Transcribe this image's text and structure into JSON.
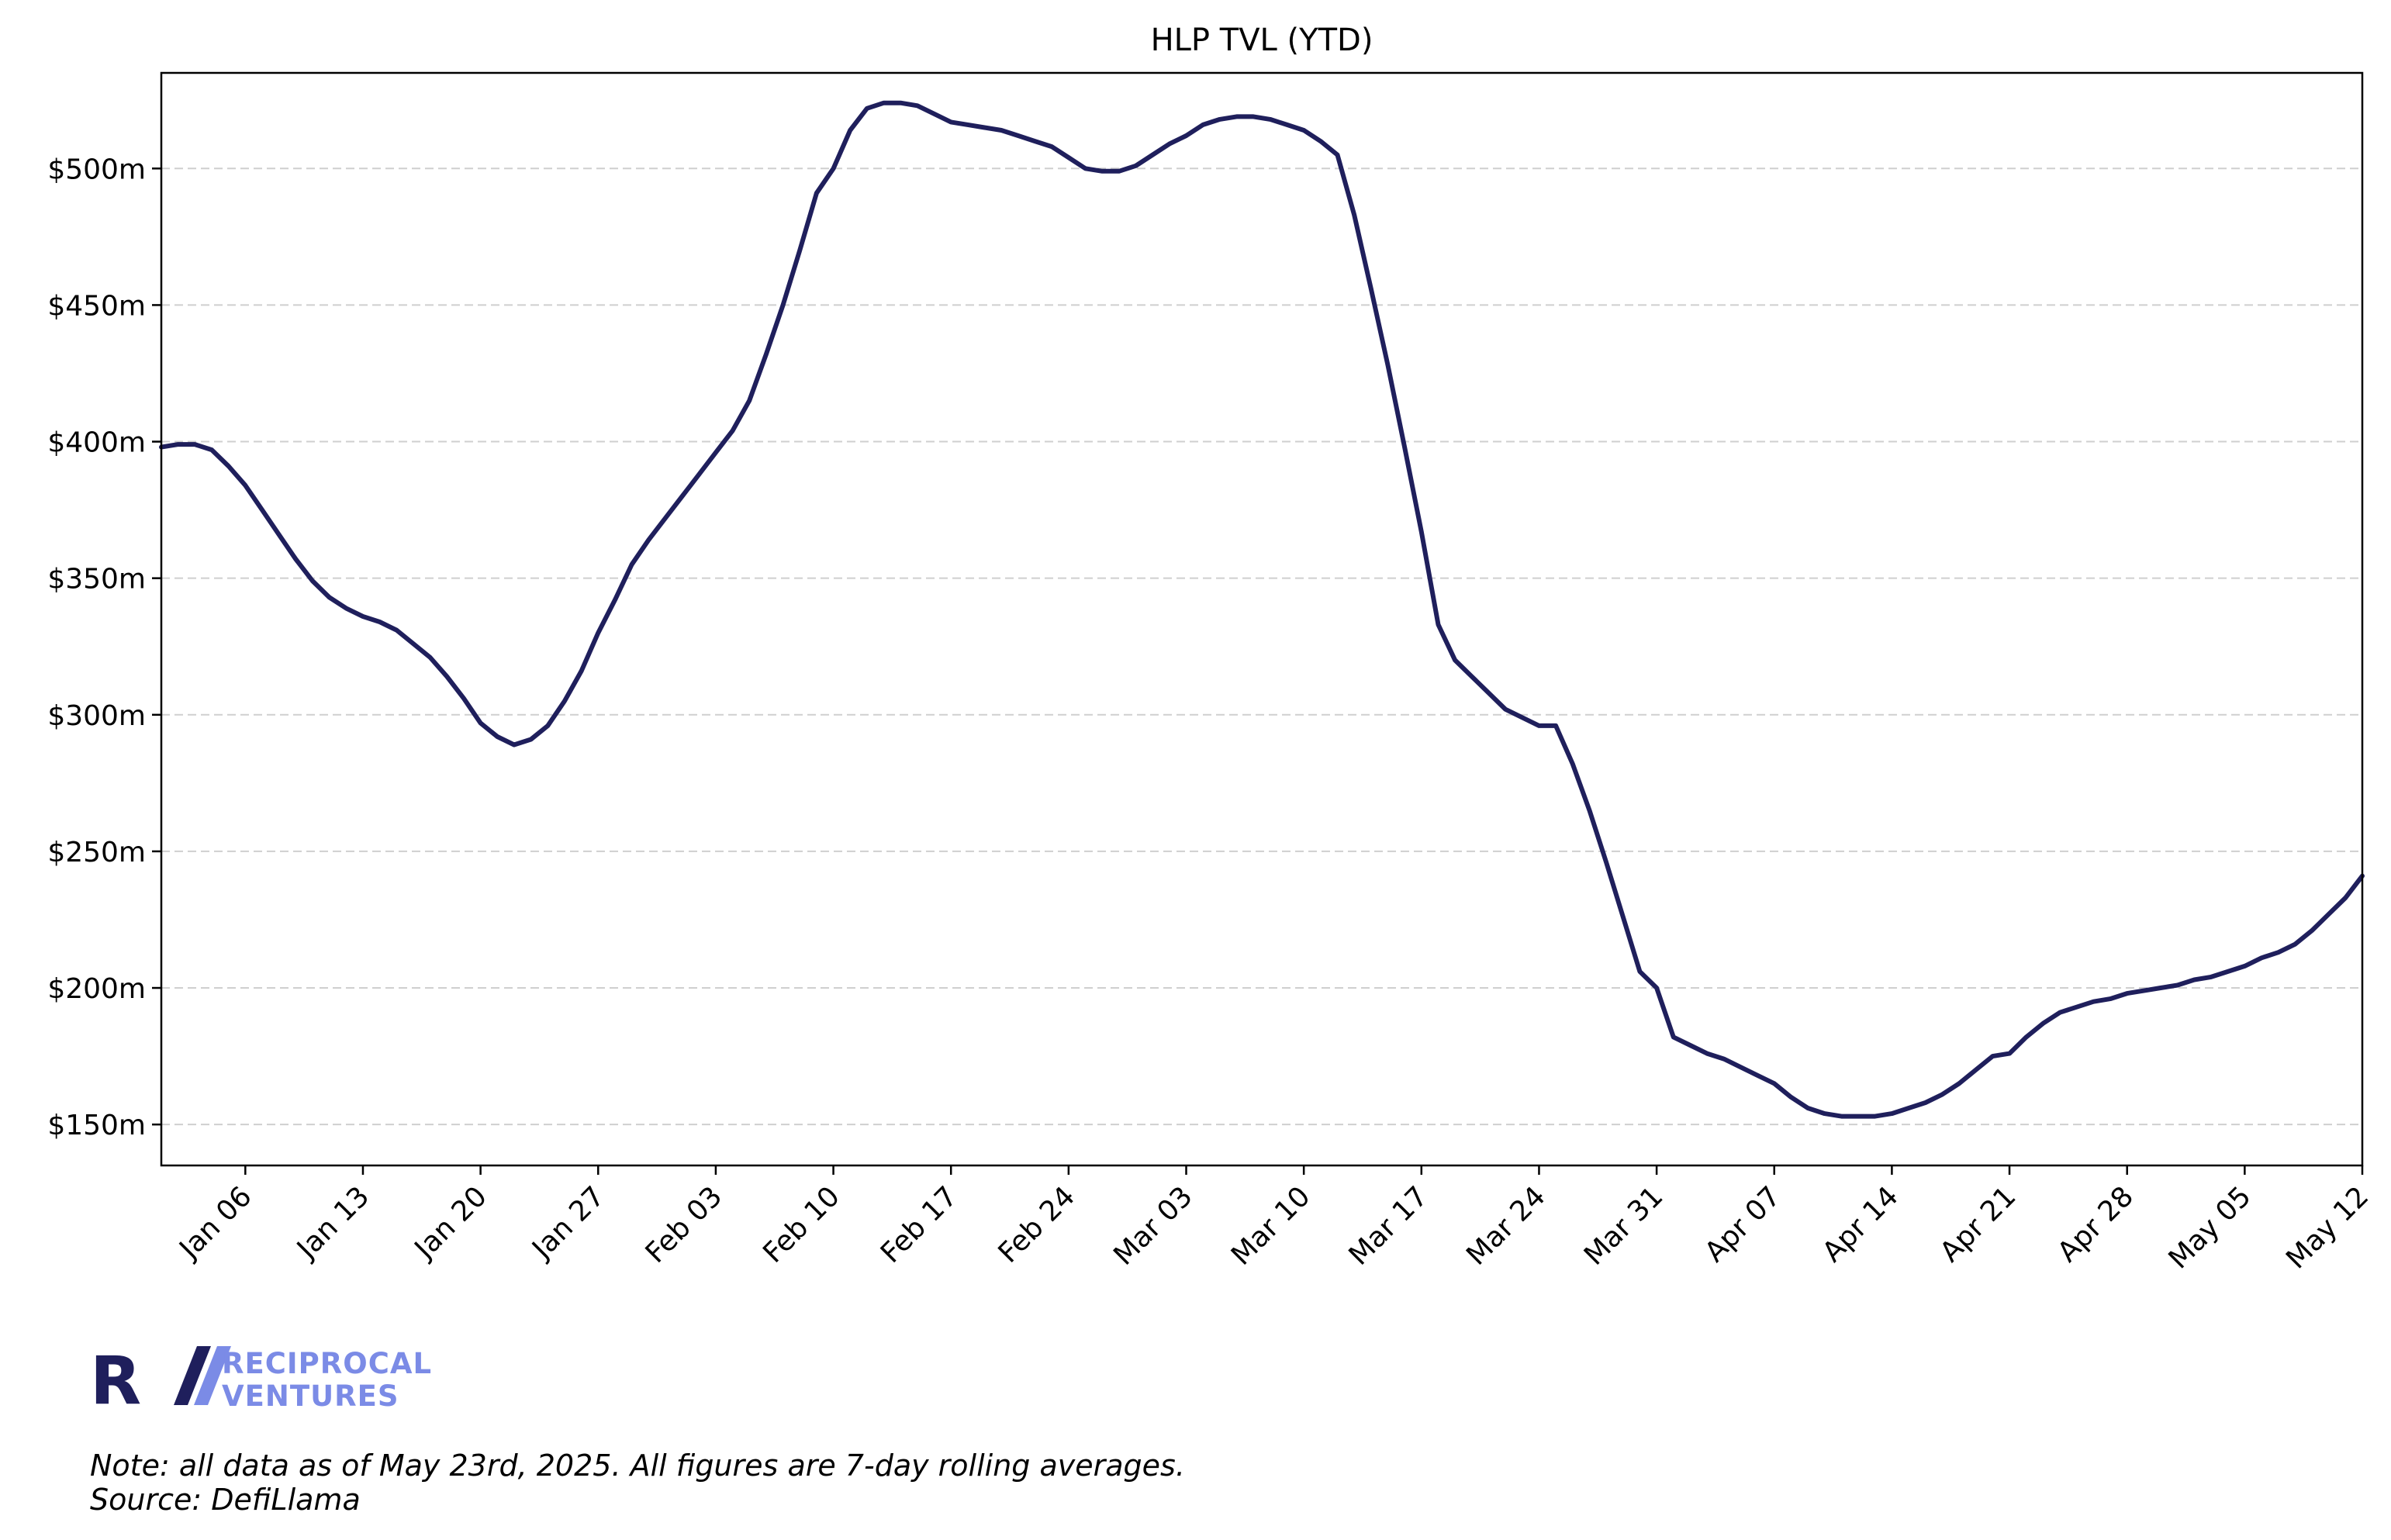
{
  "chart_data": {
    "type": "line",
    "title": "HLP TVL (YTD)",
    "xlabel": "",
    "ylabel": "",
    "grid": "horizontal-dashed",
    "legend": "none",
    "x_range": [
      "2025-01-01",
      "2025-05-12"
    ],
    "ylim": [
      135,
      535
    ],
    "y_ticks": [
      150,
      200,
      250,
      300,
      350,
      400,
      450,
      500
    ],
    "y_tick_labels": [
      "$150m",
      "$200m",
      "$250m",
      "$300m",
      "$350m",
      "$400m",
      "$450m",
      "$500m"
    ],
    "x_ticks": [
      "2025-01-06",
      "2025-01-13",
      "2025-01-20",
      "2025-01-27",
      "2025-02-03",
      "2025-02-10",
      "2025-02-17",
      "2025-02-24",
      "2025-03-03",
      "2025-03-10",
      "2025-03-17",
      "2025-03-24",
      "2025-03-31",
      "2025-04-07",
      "2025-04-14",
      "2025-04-21",
      "2025-04-28",
      "2025-05-05",
      "2025-05-12"
    ],
    "x_tick_labels": [
      "Jan 06",
      "Jan 13",
      "Jan 20",
      "Jan 27",
      "Feb 03",
      "Feb 10",
      "Feb 17",
      "Feb 24",
      "Mar 03",
      "Mar 10",
      "Mar 17",
      "Mar 24",
      "Mar 31",
      "Apr 07",
      "Apr 14",
      "Apr 21",
      "Apr 28",
      "May 05",
      "May 12"
    ],
    "series": [
      {
        "color": "#1f1f5c",
        "points": [
          [
            "2025-01-01",
            398
          ],
          [
            "2025-01-02",
            399
          ],
          [
            "2025-01-03",
            399
          ],
          [
            "2025-01-04",
            397
          ],
          [
            "2025-01-05",
            391
          ],
          [
            "2025-01-06",
            384
          ],
          [
            "2025-01-07",
            375
          ],
          [
            "2025-01-08",
            366
          ],
          [
            "2025-01-09",
            357
          ],
          [
            "2025-01-10",
            349
          ],
          [
            "2025-01-11",
            343
          ],
          [
            "2025-01-12",
            339
          ],
          [
            "2025-01-13",
            336
          ],
          [
            "2025-01-14",
            334
          ],
          [
            "2025-01-15",
            331
          ],
          [
            "2025-01-16",
            326
          ],
          [
            "2025-01-17",
            321
          ],
          [
            "2025-01-18",
            314
          ],
          [
            "2025-01-19",
            306
          ],
          [
            "2025-01-20",
            297
          ],
          [
            "2025-01-21",
            292
          ],
          [
            "2025-01-22",
            289
          ],
          [
            "2025-01-23",
            291
          ],
          [
            "2025-01-24",
            296
          ],
          [
            "2025-01-25",
            305
          ],
          [
            "2025-01-26",
            316
          ],
          [
            "2025-01-27",
            330
          ],
          [
            "2025-01-28",
            342
          ],
          [
            "2025-01-29",
            355
          ],
          [
            "2025-01-30",
            364
          ],
          [
            "2025-01-31",
            372
          ],
          [
            "2025-02-01",
            380
          ],
          [
            "2025-02-02",
            388
          ],
          [
            "2025-02-03",
            396
          ],
          [
            "2025-02-04",
            404
          ],
          [
            "2025-02-05",
            415
          ],
          [
            "2025-02-06",
            432
          ],
          [
            "2025-02-07",
            450
          ],
          [
            "2025-02-08",
            470
          ],
          [
            "2025-02-09",
            491
          ],
          [
            "2025-02-10",
            500
          ],
          [
            "2025-02-11",
            514
          ],
          [
            "2025-02-12",
            522
          ],
          [
            "2025-02-13",
            524
          ],
          [
            "2025-02-14",
            524
          ],
          [
            "2025-02-15",
            523
          ],
          [
            "2025-02-16",
            520
          ],
          [
            "2025-02-17",
            517
          ],
          [
            "2025-02-18",
            516
          ],
          [
            "2025-02-19",
            515
          ],
          [
            "2025-02-20",
            514
          ],
          [
            "2025-02-21",
            512
          ],
          [
            "2025-02-22",
            510
          ],
          [
            "2025-02-23",
            508
          ],
          [
            "2025-02-24",
            504
          ],
          [
            "2025-02-25",
            500
          ],
          [
            "2025-02-26",
            499
          ],
          [
            "2025-02-27",
            499
          ],
          [
            "2025-02-28",
            501
          ],
          [
            "2025-03-01",
            505
          ],
          [
            "2025-03-02",
            509
          ],
          [
            "2025-03-03",
            512
          ],
          [
            "2025-03-04",
            516
          ],
          [
            "2025-03-05",
            518
          ],
          [
            "2025-03-06",
            519
          ],
          [
            "2025-03-07",
            519
          ],
          [
            "2025-03-08",
            518
          ],
          [
            "2025-03-09",
            516
          ],
          [
            "2025-03-10",
            514
          ],
          [
            "2025-03-11",
            510
          ],
          [
            "2025-03-12",
            505
          ],
          [
            "2025-03-13",
            483
          ],
          [
            "2025-03-14",
            456
          ],
          [
            "2025-03-15",
            428
          ],
          [
            "2025-03-16",
            398
          ],
          [
            "2025-03-17",
            367
          ],
          [
            "2025-03-18",
            333
          ],
          [
            "2025-03-19",
            320
          ],
          [
            "2025-03-20",
            314
          ],
          [
            "2025-03-21",
            308
          ],
          [
            "2025-03-22",
            302
          ],
          [
            "2025-03-23",
            299
          ],
          [
            "2025-03-24",
            296
          ],
          [
            "2025-03-25",
            296
          ],
          [
            "2025-03-26",
            282
          ],
          [
            "2025-03-27",
            265
          ],
          [
            "2025-03-28",
            246
          ],
          [
            "2025-03-29",
            226
          ],
          [
            "2025-03-30",
            206
          ],
          [
            "2025-03-31",
            200
          ],
          [
            "2025-04-01",
            182
          ],
          [
            "2025-04-02",
            179
          ],
          [
            "2025-04-03",
            176
          ],
          [
            "2025-04-04",
            174
          ],
          [
            "2025-04-05",
            171
          ],
          [
            "2025-04-06",
            168
          ],
          [
            "2025-04-07",
            165
          ],
          [
            "2025-04-08",
            160
          ],
          [
            "2025-04-09",
            156
          ],
          [
            "2025-04-10",
            154
          ],
          [
            "2025-04-11",
            153
          ],
          [
            "2025-04-12",
            153
          ],
          [
            "2025-04-13",
            153
          ],
          [
            "2025-04-14",
            154
          ],
          [
            "2025-04-15",
            156
          ],
          [
            "2025-04-16",
            158
          ],
          [
            "2025-04-17",
            161
          ],
          [
            "2025-04-18",
            165
          ],
          [
            "2025-04-19",
            170
          ],
          [
            "2025-04-20",
            175
          ],
          [
            "2025-04-21",
            176
          ],
          [
            "2025-04-22",
            182
          ],
          [
            "2025-04-23",
            187
          ],
          [
            "2025-04-24",
            191
          ],
          [
            "2025-04-25",
            193
          ],
          [
            "2025-04-26",
            195
          ],
          [
            "2025-04-27",
            196
          ],
          [
            "2025-04-28",
            198
          ],
          [
            "2025-04-29",
            199
          ],
          [
            "2025-04-30",
            200
          ],
          [
            "2025-05-01",
            201
          ],
          [
            "2025-05-02",
            203
          ],
          [
            "2025-05-03",
            204
          ],
          [
            "2025-05-04",
            206
          ],
          [
            "2025-05-05",
            208
          ],
          [
            "2025-05-06",
            211
          ],
          [
            "2025-05-07",
            213
          ],
          [
            "2025-05-08",
            216
          ],
          [
            "2025-05-09",
            221
          ],
          [
            "2025-05-10",
            227
          ],
          [
            "2025-05-11",
            233
          ],
          [
            "2025-05-12",
            241
          ]
        ]
      }
    ]
  },
  "branding": {
    "logo_line1": "RECIPROCAL",
    "logo_line2": "VENTURES",
    "logo_color_dark": "#1f1f5c",
    "logo_color_light": "#7b8be6"
  },
  "footer": {
    "note": "Note: all data as of May 23rd, 2025. All figures are 7-day rolling averages.",
    "source": "Source: DefiLlama"
  }
}
